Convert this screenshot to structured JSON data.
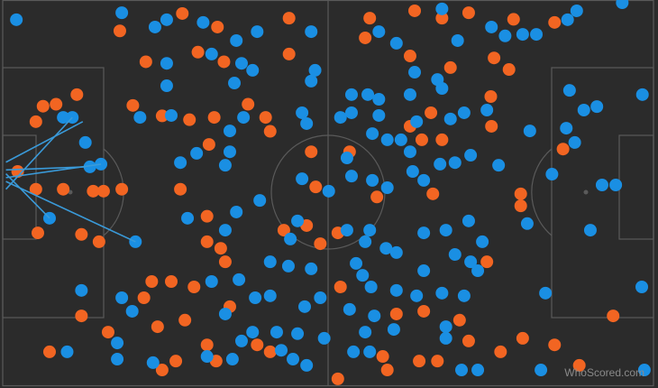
{
  "chart_data": {
    "type": "scatter",
    "watermark": "WhoScored.com",
    "xlim": [
      0,
      100
    ],
    "ylim": [
      100,
      0
    ],
    "series": [
      {
        "color": "#f26522",
        "x": [
          18,
          22,
          27.6,
          33,
          34,
          30,
          44,
          44,
          56.4,
          55.7,
          63.3,
          67.5,
          71.6,
          78.5,
          84.8,
          75.5,
          77.8,
          68.8,
          62.6,
          75,
          6.2,
          8.2,
          11.4,
          5.1,
          20,
          24.5,
          28.7,
          32.5,
          40.4,
          37.7,
          31.7,
          41.1,
          62.6,
          64.4,
          67.5,
          65.8,
          75.1,
          86.1,
          53.3,
          47.4,
          2.3,
          5.1,
          9.3,
          13.9,
          15.5,
          18.3,
          27.3,
          48.1,
          57.5,
          66.1,
          79.6,
          79.6,
          5.4,
          12.1,
          14.8,
          31.4,
          31.4,
          33.5,
          34.2,
          46.7,
          43.2,
          48.8,
          51.5,
          74.4,
          22.9,
          25.9,
          29.4,
          21.7,
          51.9,
          64.7,
          12.1,
          28,
          34.9,
          23.8,
          16.2,
          31.4,
          39.1,
          41.1,
          58.4,
          60.5,
          70.2,
          71.6,
          76.5,
          79.9,
          84.8,
          93.8,
          88.6,
          7.2,
          26.6,
          24.5,
          59.1,
          66.8,
          64,
          51.5,
          32.8
        ],
        "y": [
          8,
          16,
          3.5,
          7,
          16,
          13.5,
          4.7,
          14,
          4.7,
          9.8,
          2.8,
          4.7,
          3.3,
          5,
          5.8,
          15,
          18,
          17.5,
          14.5,
          25,
          27.5,
          27,
          24.5,
          31.5,
          27.3,
          30,
          31,
          30.4,
          30.4,
          27,
          37.4,
          34,
          32.7,
          36.2,
          36.2,
          29.2,
          32.7,
          38.6,
          39.3,
          39.3,
          44.4,
          49,
          49,
          49.5,
          49.5,
          49,
          49,
          48.4,
          51,
          50.2,
          50.2,
          53.3,
          60.3,
          60.7,
          62.6,
          56,
          62.6,
          64.3,
          67.8,
          58.4,
          59.6,
          63.1,
          60.3,
          67.8,
          72.9,
          72.9,
          74.3,
          77.1,
          74.3,
          80.6,
          81.8,
          82.9,
          79.4,
          84.6,
          86,
          89.3,
          89.3,
          91.1,
          92.3,
          81.3,
          82.9,
          88.3,
          91.1,
          87.6,
          89.3,
          81.8,
          94.6,
          91.1,
          93.5,
          95.8,
          95.8,
          93.5,
          93.5,
          98.1,
          93.5
        ]
      },
      {
        "color": "#1a8fe3",
        "x": [
          2.1,
          18.3,
          25.2,
          23.4,
          30.8,
          35.9,
          39.1,
          47.4,
          57.8,
          60.5,
          67.5,
          69.9,
          75.1,
          77.2,
          79.9,
          82,
          86.8,
          88.2,
          95.2,
          25.2,
          32.1,
          36.7,
          38.4,
          48,
          47.4,
          63.3,
          66.8,
          67.5,
          62.6,
          25.2,
          35.6,
          53.6,
          56.1,
          57.8,
          87.1,
          98.3,
          10.7,
          9.3,
          12.7,
          21.1,
          25.9,
          34.9,
          37,
          46,
          46.7,
          51.9,
          53.6,
          57.8,
          56.8,
          59.1,
          61.2,
          63.6,
          68.8,
          70.9,
          74.4,
          81,
          86.6,
          89.3,
          91.3,
          87.9,
          13.4,
          15.1,
          29.8,
          34.9,
          27.3,
          34.2,
          46,
          50.1,
          52.9,
          53.6,
          56.8,
          59.1,
          62.6,
          63,
          64.7,
          67.2,
          69.5,
          71.9,
          76.2,
          84.4,
          92.1,
          94.2,
          7.2,
          20.4,
          28.4,
          34.2,
          35.9,
          39.5,
          45.3,
          44.2,
          52.9,
          56.4,
          55.7,
          58.9,
          60.5,
          64.7,
          68.1,
          71.6,
          73.7,
          69.5,
          71.9,
          80.6,
          90.3,
          41.1,
          43.9,
          47.4,
          54.3,
          55.3,
          64.7,
          73,
          32.1,
          36.3,
          38.8,
          41.1,
          48.8,
          56.6,
          60.5,
          63.6,
          67.5,
          70.9,
          83.4,
          98.2,
          12.1,
          18.3,
          19.9,
          34.2,
          46.4,
          53.3,
          57.1,
          68.1,
          38.4,
          42.1,
          45.3,
          49.4,
          55.7,
          60.1,
          68.1,
          17.6,
          36.7,
          42.8,
          44.6,
          53.9,
          56.4,
          31.4,
          35.3,
          17.6,
          23.1,
          46.7,
          70.5,
          73,
          82.7,
          98.6,
          9.9
        ],
        "y": [
          5.1,
          3.3,
          5.1,
          7,
          5.8,
          10.5,
          8.2,
          8.2,
          8.2,
          11.2,
          2.3,
          10.5,
          7,
          9.3,
          8.9,
          8.9,
          5.1,
          2.8,
          0.7,
          16.4,
          14,
          16.4,
          18.2,
          18.2,
          21,
          18.7,
          20.6,
          22.9,
          24.5,
          22.2,
          21.5,
          24.5,
          24.5,
          25.7,
          23.4,
          24.5,
          30.4,
          30.4,
          36.9,
          30.4,
          29.9,
          33.9,
          30.4,
          29.2,
          32,
          30.4,
          29.2,
          29.9,
          34.6,
          36.2,
          36.2,
          31.5,
          30.8,
          29.2,
          28.5,
          33.9,
          33.2,
          28.5,
          27.6,
          36.9,
          43.2,
          42.5,
          39.7,
          39.3,
          42.1,
          42.8,
          46.3,
          49.5,
          40.9,
          45.6,
          46.7,
          48.6,
          39.3,
          44.4,
          46.7,
          42.5,
          42.1,
          40.2,
          42.8,
          45.1,
          47.9,
          47.9,
          56.5,
          62.6,
          56.5,
          59.6,
          54.9,
          51.9,
          57.2,
          61.9,
          59.6,
          59.6,
          62.6,
          64.3,
          65.4,
          60.3,
          59.6,
          57.2,
          62.6,
          65.9,
          67.8,
          57.9,
          59.6,
          67.8,
          68.9,
          69.6,
          68.2,
          71.3,
          70.1,
          70.1,
          72.9,
          72.4,
          77.1,
          76.6,
          77.1,
          74.3,
          75.2,
          76.6,
          75.9,
          76.6,
          75.9,
          74.3,
          75.2,
          77.1,
          80.6,
          81.3,
          79.4,
          80.1,
          81.8,
          84.6,
          86,
          86,
          86.4,
          87.6,
          86,
          85.3,
          87.6,
          88.8,
          88.3,
          90.7,
          93,
          91.1,
          91.1,
          92.3,
          93,
          93,
          93.9,
          94.6,
          95.8,
          95.8,
          95.8,
          95.8,
          91.1
        ]
      }
    ],
    "passes": {
      "color": "#3a9ad9",
      "x": [
        0.5,
        0.5,
        0.5,
        0.5,
        0.5,
        0.5
      ],
      "y": [
        42,
        44,
        46,
        47,
        45,
        49
      ],
      "x2": [
        12.3,
        12.7,
        15.1,
        20.4,
        7.2,
        10.7
      ],
      "y2": [
        31.5,
        43.2,
        42.5,
        62.6,
        56.5,
        30.4
      ]
    }
  }
}
